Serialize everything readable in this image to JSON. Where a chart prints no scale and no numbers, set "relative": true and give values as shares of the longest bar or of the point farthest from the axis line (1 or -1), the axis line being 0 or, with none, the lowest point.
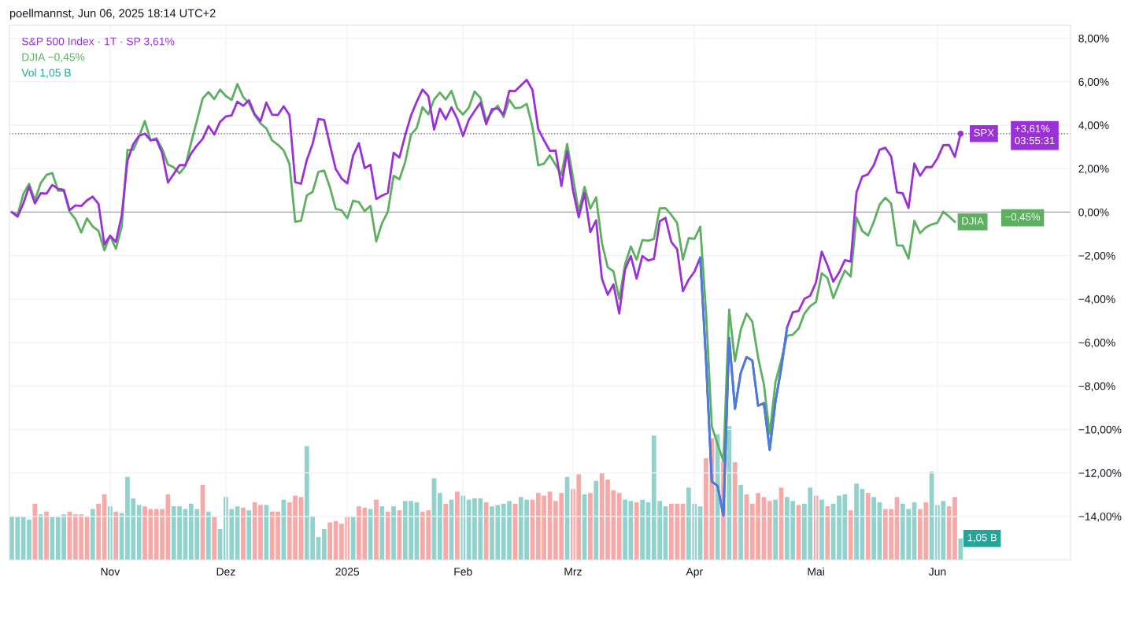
{
  "chart_data": [
    {
      "type": "line",
      "title": "poellmannst, Jun 06, 2025 18:14 UTC+2",
      "categories": [
        null,
        null,
        null,
        null,
        null,
        null,
        null,
        null,
        null,
        null,
        null,
        null,
        null,
        null,
        null,
        null,
        null,
        "Nov",
        null,
        null,
        null,
        null,
        null,
        null,
        null,
        null,
        null,
        null,
        null,
        null,
        null,
        null,
        null,
        null,
        null,
        null,
        null,
        "Dez",
        null,
        null,
        null,
        null,
        null,
        null,
        null,
        null,
        null,
        null,
        null,
        null,
        null,
        null,
        null,
        null,
        null,
        null,
        null,
        null,
        "2025",
        null,
        null,
        null,
        null,
        null,
        null,
        null,
        null,
        null,
        null,
        null,
        null,
        null,
        null,
        null,
        null,
        null,
        null,
        null,
        "Feb",
        null,
        null,
        null,
        null,
        null,
        null,
        null,
        null,
        null,
        null,
        null,
        null,
        null,
        null,
        null,
        null,
        null,
        null,
        "Mrz",
        null,
        null,
        null,
        null,
        null,
        null,
        null,
        null,
        null,
        null,
        null,
        null,
        null,
        null,
        null,
        null,
        null,
        null,
        null,
        null,
        "Apr",
        null,
        null,
        null,
        null,
        null,
        null,
        null,
        null,
        null,
        null,
        null,
        null,
        null,
        null,
        null,
        null,
        null,
        null,
        null,
        null,
        "Mai",
        null,
        null,
        null,
        null,
        null,
        null,
        null,
        null,
        null,
        null,
        null,
        null,
        null,
        null,
        null,
        null,
        null,
        null,
        null,
        null,
        "Jun",
        null,
        null,
        null,
        null
      ],
      "series": [
        {
          "color": "#4480d8",
          "values": [
            null,
            null,
            null,
            null,
            null,
            null,
            null,
            null,
            null,
            null,
            null,
            null,
            null,
            null,
            null,
            null,
            null,
            null,
            null,
            null,
            null,
            null,
            null,
            null,
            null,
            null,
            null,
            null,
            null,
            null,
            null,
            null,
            null,
            null,
            null,
            null,
            null,
            null,
            null,
            null,
            null,
            null,
            null,
            null,
            null,
            null,
            null,
            null,
            null,
            null,
            null,
            null,
            null,
            null,
            null,
            null,
            null,
            null,
            null,
            null,
            null,
            null,
            null,
            null,
            null,
            null,
            null,
            null,
            null,
            null,
            null,
            null,
            null,
            null,
            null,
            null,
            null,
            null,
            null,
            null,
            null,
            null,
            null,
            null,
            null,
            null,
            null,
            null,
            null,
            null,
            null,
            null,
            null,
            null,
            null,
            null,
            null,
            null,
            null,
            null,
            null,
            null,
            null,
            null,
            null,
            null,
            null,
            null,
            null,
            null,
            null,
            null,
            null,
            null,
            null,
            null,
            null,
            null,
            null,
            -2.09,
            -6.83,
            -12.4,
            -12.6,
            -13.97,
            -5.79,
            -9.05,
            -7.4,
            -6.67,
            -6.83,
            -8.91,
            -8.79,
            -10.94,
            -8.71,
            -7.19,
            -5.31,
            null,
            null,
            null,
            null,
            null,
            null,
            null,
            null,
            null,
            null,
            null,
            null,
            null,
            null,
            null,
            null,
            null,
            null,
            null,
            null,
            null,
            null,
            null,
            null,
            null,
            null,
            null,
            null,
            null,
            null
          ]
        },
        {
          "name": "S&P 500 Index · 1T · SP 3,61%",
          "color": "#9c30d8",
          "values": [
            0.0,
            -0.21,
            0.4,
            1.17,
            0.4,
            0.87,
            0.85,
            1.25,
            1.07,
            1.02,
            0.09,
            0.31,
            0.28,
            0.54,
            0.71,
            0.37,
            -1.49,
            -1.09,
            -1.37,
            -0.16,
            2.37,
            3.13,
            3.51,
            3.61,
            3.31,
            3.34,
            2.71,
            1.36,
            1.75,
            2.16,
            2.16,
            2.7,
            3.06,
            3.37,
            3.96,
            3.57,
            4.15,
            4.4,
            4.45,
            5.08,
            4.89,
            5.15,
            4.5,
            4.19,
            5.04,
            4.48,
            4.47,
            4.87,
            4.46,
            1.38,
            1.3,
            2.4,
            3.14,
            4.28,
            4.24,
            3.09,
            1.98,
            1.55,
            1.32,
            2.6,
            3.17,
            2.02,
            2.18,
            0.6,
            0.76,
            0.88,
            2.73,
            2.51,
            3.53,
            4.44,
            5.08,
            5.64,
            5.34,
            3.8,
            4.76,
            4.27,
            4.82,
            4.29,
            3.5,
            4.24,
            4.65,
            5.03,
            4.04,
            4.74,
            4.77,
            4.49,
            5.58,
            5.57,
            5.83,
            6.08,
            5.62,
            3.82,
            3.3,
            2.82,
            2.83,
            1.2,
            2.8,
            1.0,
            -0.24,
            0.87,
            -0.92,
            -0.38,
            -3.06,
            -3.8,
            -3.33,
            -4.67,
            -2.64,
            -2.02,
            -3.06,
            -2.02,
            -2.23,
            -2.15,
            -0.42,
            -0.27,
            -1.38,
            -1.7,
            -3.64,
            -3.11,
            -2.74,
            -2.09,
            -6.83,
            -12.4,
            -12.6,
            -13.97,
            -5.79,
            -9.05,
            -7.4,
            -6.67,
            -6.83,
            -8.91,
            -8.79,
            -10.94,
            -8.71,
            -7.19,
            -5.31,
            -4.61,
            -4.55,
            -3.99,
            -3.85,
            -3.24,
            -1.82,
            -2.45,
            -3.2,
            -2.78,
            -2.21,
            -2.28,
            0.9,
            1.63,
            1.74,
            2.16,
            2.87,
            2.96,
            2.56,
            0.91,
            0.86,
            0.19,
            2.24,
            1.67,
            2.07,
            2.07,
            2.48,
            3.08,
            3.09,
            2.54,
            3.61
          ]
        },
        {
          "name": "DJIA −0,45%",
          "color": "#5cb060",
          "values": [
            0.0,
            -0.14,
            0.83,
            1.3,
            0.54,
            1.33,
            1.71,
            1.8,
            0.99,
            0.97,
            0.01,
            -0.32,
            -0.94,
            -0.29,
            -0.66,
            -0.87,
            -1.76,
            -1.08,
            -1.69,
            -0.68,
            2.86,
            2.86,
            3.47,
            4.19,
            3.29,
            3.4,
            2.91,
            2.19,
            2.06,
            1.78,
            2.11,
            3.2,
            4.2,
            5.23,
            5.52,
            5.2,
            5.64,
            5.34,
            5.16,
            5.89,
            5.3,
            5.01,
            4.45,
            4.08,
            3.85,
            3.3,
            3.1,
            2.84,
            2.21,
            -0.44,
            -0.4,
            0.77,
            0.93,
            1.85,
            1.91,
            1.13,
            0.15,
            0.08,
            -0.28,
            0.52,
            0.46,
            0.04,
            0.29,
            -1.35,
            -0.51,
            0.01,
            1.67,
            1.51,
            2.3,
            3.56,
            3.87,
            4.83,
            4.5,
            5.18,
            5.5,
            5.18,
            5.58,
            4.78,
            4.49,
            4.81,
            5.55,
            5.26,
            4.21,
            4.61,
            4.9,
            4.37,
            5.17,
            4.78,
            4.81,
            4.98,
            3.92,
            2.15,
            2.23,
            2.61,
            2.17,
            1.71,
            3.13,
            1.6,
            0.02,
            1.16,
            0.16,
            0.68,
            -1.41,
            -2.54,
            -2.73,
            -4.0,
            -2.41,
            -1.58,
            -2.19,
            -1.29,
            -1.31,
            -1.24,
            0.17,
            0.18,
            -0.13,
            -0.5,
            -2.18,
            -1.2,
            -1.23,
            -0.67,
            -4.62,
            -9.87,
            -10.69,
            -11.45,
            -4.48,
            -6.86,
            -5.41,
            -4.67,
            -5.04,
            -6.69,
            -7.93,
            -10.21,
            -7.82,
            -6.83,
            -5.69,
            -5.64,
            -5.37,
            -4.67,
            -4.33,
            -4.14,
            -2.81,
            -3.04,
            -3.96,
            -3.29,
            -2.69,
            -2.97,
            -0.24,
            -0.87,
            -1.08,
            -0.45,
            0.34,
            0.66,
            0.39,
            -1.53,
            -1.54,
            -2.14,
            -0.4,
            -0.97,
            -0.7,
            -0.57,
            -0.49,
            0.02,
            -0.2,
            -0.45,
            null
          ]
        },
        {
          "type": "scatter",
          "color": "#9c30d8",
          "values": [
            null,
            null,
            null,
            null,
            null,
            null,
            null,
            null,
            null,
            null,
            null,
            null,
            null,
            null,
            null,
            null,
            null,
            null,
            null,
            null,
            null,
            null,
            null,
            null,
            null,
            null,
            null,
            null,
            null,
            null,
            null,
            null,
            null,
            null,
            null,
            null,
            null,
            null,
            null,
            null,
            null,
            null,
            null,
            null,
            null,
            null,
            null,
            null,
            null,
            null,
            null,
            null,
            null,
            null,
            null,
            null,
            null,
            null,
            null,
            null,
            null,
            null,
            null,
            null,
            null,
            null,
            null,
            null,
            null,
            null,
            null,
            null,
            null,
            null,
            null,
            null,
            null,
            null,
            null,
            null,
            null,
            null,
            null,
            null,
            null,
            null,
            null,
            null,
            null,
            null,
            null,
            null,
            null,
            null,
            null,
            null,
            null,
            null,
            null,
            null,
            null,
            null,
            null,
            null,
            null,
            null,
            null,
            null,
            null,
            null,
            null,
            null,
            null,
            null,
            null,
            null,
            null,
            null,
            null,
            null,
            null,
            null,
            null,
            null,
            null,
            null,
            null,
            null,
            null,
            null,
            null,
            null,
            null,
            null,
            null,
            null,
            null,
            null,
            null,
            null,
            null,
            null,
            null,
            null,
            null,
            null,
            null,
            null,
            null,
            null,
            null,
            null,
            null,
            null,
            null,
            null,
            null,
            null,
            null,
            null,
            null,
            null,
            null,
            null,
            3.61
          ]
        }
      ],
      "ylim": [
        -16,
        8.6
      ],
      "yticks": [
        {
          "value": 8,
          "label": "8,00%"
        },
        {
          "value": 6,
          "label": "6,00%"
        },
        {
          "value": 4,
          "label": "4,00%"
        },
        {
          "value": 2,
          "label": "2,00%"
        },
        {
          "value": 0,
          "label": "0,00%"
        },
        {
          "value": -2,
          "label": "−2,00%"
        },
        {
          "value": -4,
          "label": "−4,00%"
        },
        {
          "value": -6,
          "label": "−6,00%"
        },
        {
          "value": -8,
          "label": "−8,00%"
        },
        {
          "value": -10,
          "label": "−10,00%"
        },
        {
          "value": -12,
          "label": "−12,00%"
        },
        {
          "value": -14,
          "label": "−14,00%"
        }
      ],
      "grid": true,
      "legend": "top left",
      "ref_lines": [
        {
          "axis": "y",
          "value": 0,
          "color": "#a3a6af",
          "line_style": "solid"
        },
        {
          "axis": "y",
          "value": 3.61,
          "color": "#787b86",
          "line_style": "dotted"
        }
      ],
      "annotations": [
        {
          "text": "SPX",
          "y": 3.61
        },
        "+3,61%",
        "03:55:31",
        {
          "text": "DJIA",
          "y": -0.45
        },
        "−0,45%"
      ]
    },
    {
      "type": "bar",
      "relative": true,
      "legend": "top left",
      "categories": [
        null,
        null,
        null,
        null,
        null,
        null,
        null,
        null,
        null,
        null,
        null,
        null,
        null,
        null,
        null,
        null,
        null,
        null,
        null,
        null,
        null,
        null,
        null,
        null,
        null,
        null,
        null,
        null,
        null,
        null,
        null,
        null,
        null,
        null,
        null,
        null,
        null,
        null,
        null,
        null,
        null,
        null,
        null,
        null,
        null,
        null,
        null,
        null,
        null,
        null,
        null,
        null,
        null,
        null,
        null,
        null,
        null,
        null,
        null,
        null,
        null,
        null,
        null,
        null,
        null,
        null,
        null,
        null,
        null,
        null,
        null,
        null,
        null,
        null,
        null,
        null,
        null,
        null,
        null,
        null,
        null,
        null,
        null,
        null,
        null,
        null,
        null,
        null,
        null,
        null,
        null,
        null,
        null,
        null,
        null,
        null,
        null,
        null,
        null,
        null,
        null,
        null,
        null,
        null,
        null,
        null,
        null,
        null,
        null,
        null,
        null,
        null,
        null,
        null,
        null,
        null,
        null,
        null,
        null,
        null,
        null,
        null,
        null,
        null,
        null,
        null,
        null,
        null,
        null,
        null,
        null,
        null,
        null,
        null,
        null,
        null,
        null,
        null,
        null,
        null,
        null,
        null,
        null,
        null,
        null,
        null,
        null,
        null,
        null,
        null,
        null,
        null,
        null,
        null,
        null,
        null,
        null,
        null,
        null,
        null,
        null,
        null,
        null,
        null,
        null
      ],
      "series": [
        {
          "name": "Vol 1,05 B",
          "values": [
            0.33,
            0.32,
            0.32,
            0.3,
            0.42,
            0.34,
            0.36,
            0.32,
            0.32,
            0.34,
            0.36,
            0.34,
            0.34,
            0.32,
            0.38,
            0.42,
            0.49,
            0.4,
            0.36,
            0.35,
            0.62,
            0.46,
            0.41,
            0.4,
            0.38,
            0.38,
            0.38,
            0.49,
            0.4,
            0.4,
            0.38,
            0.42,
            0.38,
            0.56,
            0.36,
            0.32,
            0.23,
            0.47,
            0.38,
            0.4,
            0.39,
            0.37,
            0.43,
            0.41,
            0.41,
            0.36,
            0.36,
            0.45,
            0.43,
            0.48,
            0.47,
            0.85,
            0.33,
            0.17,
            0.23,
            0.28,
            0.29,
            0.27,
            0.32,
            0.32,
            0.4,
            0.39,
            0.38,
            0.45,
            0.4,
            0.36,
            0.4,
            0.37,
            0.44,
            0.44,
            0.43,
            0.36,
            0.37,
            0.61,
            0.5,
            0.42,
            0.45,
            0.51,
            0.48,
            0.45,
            0.46,
            0.46,
            0.43,
            0.4,
            0.41,
            0.42,
            0.44,
            0.42,
            0.47,
            0.45,
            0.45,
            0.5,
            0.48,
            0.51,
            0.44,
            0.5,
            0.62,
            0.53,
            0.64,
            0.49,
            0.5,
            0.59,
            0.65,
            0.6,
            0.52,
            0.5,
            0.45,
            0.44,
            0.43,
            0.45,
            0.43,
            0.93,
            0.44,
            0.4,
            0.42,
            0.42,
            0.42,
            0.54,
            0.42,
            0.4,
            0.76,
            0.91,
            0.94,
            0.74,
            1.0,
            0.73,
            0.56,
            0.49,
            0.42,
            0.5,
            0.47,
            0.44,
            0.45,
            0.54,
            0.47,
            0.44,
            0.41,
            0.42,
            0.54,
            0.48,
            0.45,
            0.4,
            0.42,
            0.48,
            0.49,
            0.37,
            0.57,
            0.53,
            0.5,
            0.47,
            0.43,
            0.38,
            0.38,
            0.47,
            0.42,
            0.38,
            0.43,
            0.38,
            0.43,
            0.66,
            0.41,
            0.44,
            0.4,
            0.47,
            0.16
          ],
          "colors": [
            "#92d2cc",
            "#92d2cc",
            "#92d2cc",
            "#92d2cc",
            "#f7a9a7",
            "#92d2cc",
            "#f7a9a7",
            "#92d2cc",
            "#92d2cc",
            "#92d2cc",
            "#f7a9a7",
            "#f7a9a7",
            "#f7a9a7",
            "#f7a9a7",
            "#92d2cc",
            "#f7a9a7",
            "#f7a9a7",
            "#92d2cc",
            "#f7a9a7",
            "#92d2cc",
            "#92d2cc",
            "#92d2cc",
            "#92d2cc",
            "#f7a9a7",
            "#f7a9a7",
            "#f7a9a7",
            "#f7a9a7",
            "#f7a9a7",
            "#92d2cc",
            "#92d2cc",
            "#92d2cc",
            "#92d2cc",
            "#92d2cc",
            "#f7a9a7",
            "#92d2cc",
            "#f7a9a7",
            "#92d2cc",
            "#92d2cc",
            "#92d2cc",
            "#92d2cc",
            "#f7a9a7",
            "#92d2cc",
            "#f7a9a7",
            "#f7a9a7",
            "#92d2cc",
            "#f7a9a7",
            "#f7a9a7",
            "#92d2cc",
            "#f7a9a7",
            "#f7a9a7",
            "#f7a9a7",
            "#92d2cc",
            "#92d2cc",
            "#92d2cc",
            "#92d2cc",
            "#f7a9a7",
            "#f7a9a7",
            "#f7a9a7",
            "#f7a9a7",
            "#92d2cc",
            "#f7a9a7",
            "#f7a9a7",
            "#92d2cc",
            "#f7a9a7",
            "#92d2cc",
            "#f7a9a7",
            "#92d2cc",
            "#f7a9a7",
            "#92d2cc",
            "#92d2cc",
            "#92d2cc",
            "#f7a9a7",
            "#f7a9a7",
            "#92d2cc",
            "#92d2cc",
            "#f7a9a7",
            "#92d2cc",
            "#f7a9a7",
            "#92d2cc",
            "#92d2cc",
            "#92d2cc",
            "#92d2cc",
            "#f7a9a7",
            "#92d2cc",
            "#92d2cc",
            "#92d2cc",
            "#92d2cc",
            "#f7a9a7",
            "#92d2cc",
            "#92d2cc",
            "#f7a9a7",
            "#f7a9a7",
            "#f7a9a7",
            "#f7a9a7",
            "#f7a9a7",
            "#f7a9a7",
            "#92d2cc",
            "#f7a9a7",
            "#f7a9a7",
            "#92d2cc",
            "#f7a9a7",
            "#92d2cc",
            "#f7a9a7",
            "#f7a9a7",
            "#f7a9a7",
            "#f7a9a7",
            "#92d2cc",
            "#92d2cc",
            "#f7a9a7",
            "#92d2cc",
            "#92d2cc",
            "#92d2cc",
            "#92d2cc",
            "#92d2cc",
            "#f7a9a7",
            "#f7a9a7",
            "#f7a9a7",
            "#92d2cc",
            "#92d2cc",
            "#92d2cc",
            "#f7a9a7",
            "#f7a9a7",
            "#92d2cc",
            "#f7a9a7",
            "#92d2cc",
            "#f7a9a7",
            "#92d2cc",
            "#f7a9a7",
            "#f7a9a7",
            "#f7a9a7",
            "#f7a9a7",
            "#f7a9a7",
            "#92d2cc",
            "#f7a9a7",
            "#92d2cc",
            "#92d2cc",
            "#f7a9a7",
            "#92d2cc",
            "#92d2cc",
            "#f7a9a7",
            "#92d2cc",
            "#f7a9a7",
            "#92d2cc",
            "#92d2cc",
            "#92d2cc",
            "#f7a9a7",
            "#92d2cc",
            "#92d2cc",
            "#f7a9a7",
            "#92d2cc",
            "#92d2cc",
            "#f7a9a7",
            "#f7a9a7",
            "#f7a9a7",
            "#92d2cc",
            "#92d2cc",
            "#92d2cc",
            "#f7a9a7",
            "#f7a9a7",
            "#92d2cc",
            "#92d2cc",
            "#92d2cc",
            "#f7a9a7",
            "#f7a9a7",
            "#92d2cc"
          ]
        }
      ],
      "annotations": [
        "1,05 B"
      ]
    }
  ]
}
